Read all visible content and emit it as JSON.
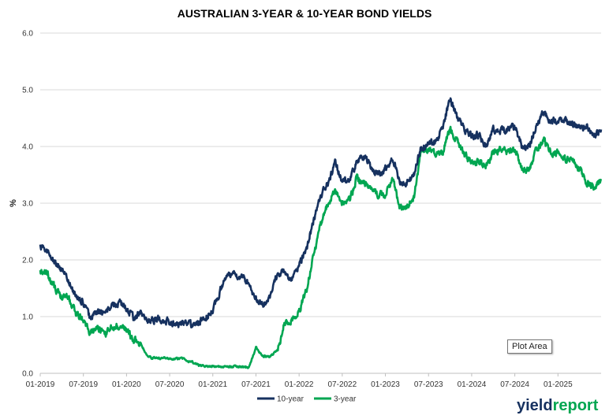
{
  "chart_data": {
    "type": "line",
    "title": "AUSTRALIAN 3-YEAR & 10-YEAR BOND YIELDS",
    "xlabel": "",
    "ylabel": "%",
    "ylim": [
      0,
      6
    ],
    "yticks": [
      "0.0",
      "1.0",
      "2.0",
      "3.0",
      "4.0",
      "5.0",
      "6.0"
    ],
    "xlim": [
      "2019-01",
      "2025-07"
    ],
    "xticks": [
      "01-2019",
      "07-2019",
      "01-2020",
      "07-2020",
      "01-2021",
      "07-2021",
      "01-2022",
      "07-2022",
      "01-2023",
      "07-2023",
      "01-2024",
      "07-2024",
      "01-2025"
    ],
    "grid": "horizontal",
    "legend": "bottom",
    "series": [
      {
        "name": "10-year",
        "color": "#16315f",
        "points": [
          [
            "2019-01",
            2.25
          ],
          [
            "2019-02",
            2.15
          ],
          [
            "2019-03",
            1.95
          ],
          [
            "2019-04",
            1.85
          ],
          [
            "2019-05",
            1.6
          ],
          [
            "2019-06",
            1.35
          ],
          [
            "2019-07",
            1.25
          ],
          [
            "2019-08",
            0.95
          ],
          [
            "2019-09",
            1.1
          ],
          [
            "2019-10",
            1.05
          ],
          [
            "2019-11",
            1.2
          ],
          [
            "2019-12",
            1.25
          ],
          [
            "2020-01",
            1.15
          ],
          [
            "2020-02",
            0.95
          ],
          [
            "2020-03",
            1.1
          ],
          [
            "2020-04",
            0.9
          ],
          [
            "2020-05",
            0.95
          ],
          [
            "2020-06",
            0.95
          ],
          [
            "2020-07",
            0.9
          ],
          [
            "2020-08",
            0.85
          ],
          [
            "2020-09",
            0.9
          ],
          [
            "2020-10",
            0.85
          ],
          [
            "2020-11",
            0.9
          ],
          [
            "2020-12",
            1.0
          ],
          [
            "2021-01",
            1.1
          ],
          [
            "2021-02",
            1.45
          ],
          [
            "2021-03",
            1.75
          ],
          [
            "2021-04",
            1.75
          ],
          [
            "2021-05",
            1.7
          ],
          [
            "2021-06",
            1.6
          ],
          [
            "2021-07",
            1.3
          ],
          [
            "2021-08",
            1.2
          ],
          [
            "2021-09",
            1.4
          ],
          [
            "2021-10",
            1.75
          ],
          [
            "2021-11",
            1.8
          ],
          [
            "2021-12",
            1.65
          ],
          [
            "2022-01",
            1.9
          ],
          [
            "2022-02",
            2.15
          ],
          [
            "2022-03",
            2.7
          ],
          [
            "2022-04",
            3.15
          ],
          [
            "2022-05",
            3.35
          ],
          [
            "2022-06",
            3.7
          ],
          [
            "2022-07",
            3.4
          ],
          [
            "2022-08",
            3.4
          ],
          [
            "2022-09",
            3.7
          ],
          [
            "2022-10",
            3.85
          ],
          [
            "2022-11",
            3.6
          ],
          [
            "2022-12",
            3.5
          ],
          [
            "2023-01",
            3.6
          ],
          [
            "2023-02",
            3.8
          ],
          [
            "2023-03",
            3.4
          ],
          [
            "2023-04",
            3.35
          ],
          [
            "2023-05",
            3.5
          ],
          [
            "2023-06",
            4.0
          ],
          [
            "2023-07",
            4.05
          ],
          [
            "2023-08",
            4.1
          ],
          [
            "2023-09",
            4.35
          ],
          [
            "2023-10",
            4.85
          ],
          [
            "2023-11",
            4.5
          ],
          [
            "2023-12",
            4.3
          ],
          [
            "2024-01",
            4.2
          ],
          [
            "2024-02",
            4.2
          ],
          [
            "2024-03",
            4.0
          ],
          [
            "2024-04",
            4.3
          ],
          [
            "2024-05",
            4.3
          ],
          [
            "2024-06",
            4.3
          ],
          [
            "2024-07",
            4.35
          ],
          [
            "2024-08",
            4.0
          ],
          [
            "2024-09",
            4.0
          ],
          [
            "2024-10",
            4.4
          ],
          [
            "2024-11",
            4.6
          ],
          [
            "2024-12",
            4.45
          ],
          [
            "2025-01",
            4.45
          ],
          [
            "2025-02",
            4.45
          ],
          [
            "2025-03",
            4.4
          ],
          [
            "2025-04",
            4.35
          ],
          [
            "2025-05",
            4.35
          ],
          [
            "2025-06",
            4.2
          ],
          [
            "2025-07",
            4.3
          ]
        ]
      },
      {
        "name": "3-year",
        "color": "#00a651",
        "points": [
          [
            "2019-01",
            1.8
          ],
          [
            "2019-02",
            1.75
          ],
          [
            "2019-03",
            1.5
          ],
          [
            "2019-04",
            1.35
          ],
          [
            "2019-05",
            1.3
          ],
          [
            "2019-06",
            1.05
          ],
          [
            "2019-07",
            0.95
          ],
          [
            "2019-08",
            0.7
          ],
          [
            "2019-09",
            0.8
          ],
          [
            "2019-10",
            0.7
          ],
          [
            "2019-11",
            0.8
          ],
          [
            "2019-12",
            0.85
          ],
          [
            "2020-01",
            0.75
          ],
          [
            "2020-02",
            0.6
          ],
          [
            "2020-03",
            0.5
          ],
          [
            "2020-04",
            0.28
          ],
          [
            "2020-05",
            0.27
          ],
          [
            "2020-06",
            0.27
          ],
          [
            "2020-07",
            0.26
          ],
          [
            "2020-08",
            0.26
          ],
          [
            "2020-09",
            0.25
          ],
          [
            "2020-10",
            0.2
          ],
          [
            "2020-11",
            0.14
          ],
          [
            "2020-12",
            0.13
          ],
          [
            "2021-01",
            0.12
          ],
          [
            "2021-02",
            0.12
          ],
          [
            "2021-03",
            0.12
          ],
          [
            "2021-04",
            0.12
          ],
          [
            "2021-05",
            0.11
          ],
          [
            "2021-06",
            0.1
          ],
          [
            "2021-07",
            0.45
          ],
          [
            "2021-08",
            0.3
          ],
          [
            "2021-09",
            0.3
          ],
          [
            "2021-10",
            0.4
          ],
          [
            "2021-11",
            0.9
          ],
          [
            "2021-12",
            0.95
          ],
          [
            "2022-01",
            1.1
          ],
          [
            "2022-02",
            1.45
          ],
          [
            "2022-03",
            2.05
          ],
          [
            "2022-04",
            2.6
          ],
          [
            "2022-05",
            3.0
          ],
          [
            "2022-06",
            3.2
          ],
          [
            "2022-07",
            3.0
          ],
          [
            "2022-08",
            3.05
          ],
          [
            "2022-09",
            3.45
          ],
          [
            "2022-10",
            3.35
          ],
          [
            "2022-11",
            3.25
          ],
          [
            "2022-12",
            3.15
          ],
          [
            "2023-01",
            3.15
          ],
          [
            "2023-02",
            3.45
          ],
          [
            "2023-03",
            2.9
          ],
          [
            "2023-04",
            2.95
          ],
          [
            "2023-05",
            3.1
          ],
          [
            "2023-06",
            3.95
          ],
          [
            "2023-07",
            3.95
          ],
          [
            "2023-08",
            3.85
          ],
          [
            "2023-09",
            3.9
          ],
          [
            "2023-10",
            4.3
          ],
          [
            "2023-11",
            4.1
          ],
          [
            "2023-12",
            3.85
          ],
          [
            "2024-01",
            3.7
          ],
          [
            "2024-02",
            3.75
          ],
          [
            "2024-03",
            3.65
          ],
          [
            "2024-04",
            3.9
          ],
          [
            "2024-05",
            3.95
          ],
          [
            "2024-06",
            3.9
          ],
          [
            "2024-07",
            3.95
          ],
          [
            "2024-08",
            3.6
          ],
          [
            "2024-09",
            3.6
          ],
          [
            "2024-10",
            3.95
          ],
          [
            "2024-11",
            4.1
          ],
          [
            "2024-12",
            3.9
          ],
          [
            "2025-01",
            3.9
          ],
          [
            "2025-02",
            3.8
          ],
          [
            "2025-03",
            3.75
          ],
          [
            "2025-04",
            3.6
          ],
          [
            "2025-05",
            3.35
          ],
          [
            "2025-06",
            3.3
          ],
          [
            "2025-07",
            3.4
          ]
        ]
      }
    ]
  },
  "brand": {
    "part1": "yield",
    "part2": "report"
  },
  "tooltip": {
    "text": "Plot Area"
  }
}
